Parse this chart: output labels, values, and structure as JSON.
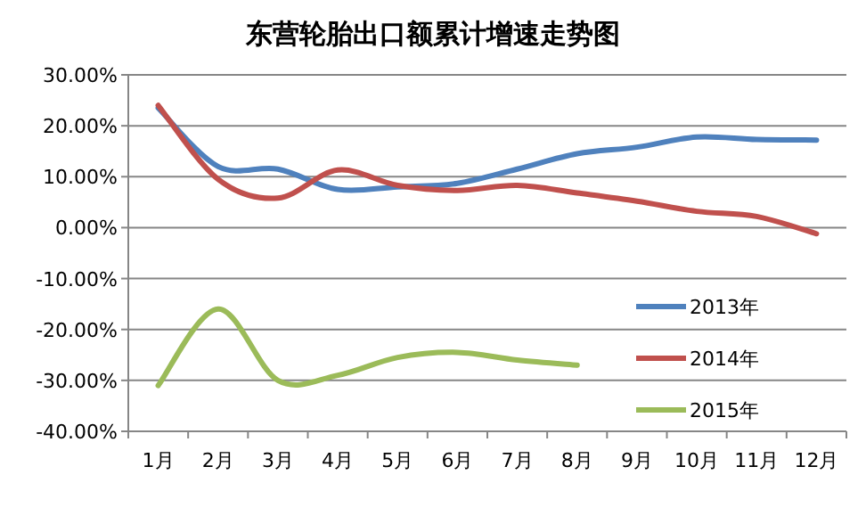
{
  "chart_data": {
    "type": "line",
    "title": "东营轮胎出口额累计增速走势图",
    "categories": [
      "1月",
      "2月",
      "3月",
      "4月",
      "5月",
      "6月",
      "7月",
      "8月",
      "9月",
      "10月",
      "11月",
      "12月"
    ],
    "series": [
      {
        "name": "2013年",
        "color": "#4f81bd",
        "values": [
          23.5,
          12,
          11.5,
          7.5,
          8,
          8.7,
          11.5,
          14.5,
          15.8,
          17.8,
          17.3,
          17.2
        ]
      },
      {
        "name": "2014年",
        "color": "#c0504d",
        "values": [
          24,
          9.5,
          5.8,
          11.3,
          8.3,
          7.3,
          8.3,
          6.8,
          5.2,
          3.2,
          2.2,
          -1.2
        ]
      },
      {
        "name": "2015年",
        "color": "#9bbb59",
        "values": [
          -31,
          -16,
          -30,
          -29,
          -25.5,
          -24.5,
          -26,
          -27,
          null,
          null,
          null,
          null
        ]
      }
    ],
    "ylim": [
      -40,
      30
    ],
    "yticks": [
      {
        "value": -40,
        "label": "-40.00%"
      },
      {
        "value": -30,
        "label": "-30.00%"
      },
      {
        "value": -20,
        "label": "-20.00%"
      },
      {
        "value": -10,
        "label": "-10.00%"
      },
      {
        "value": 0,
        "label": "0.00%"
      },
      {
        "value": 10,
        "label": "10.00%"
      },
      {
        "value": 20,
        "label": "20.00%"
      },
      {
        "value": 30,
        "label": "30.00%"
      }
    ],
    "grid": "y",
    "legend": "right"
  }
}
